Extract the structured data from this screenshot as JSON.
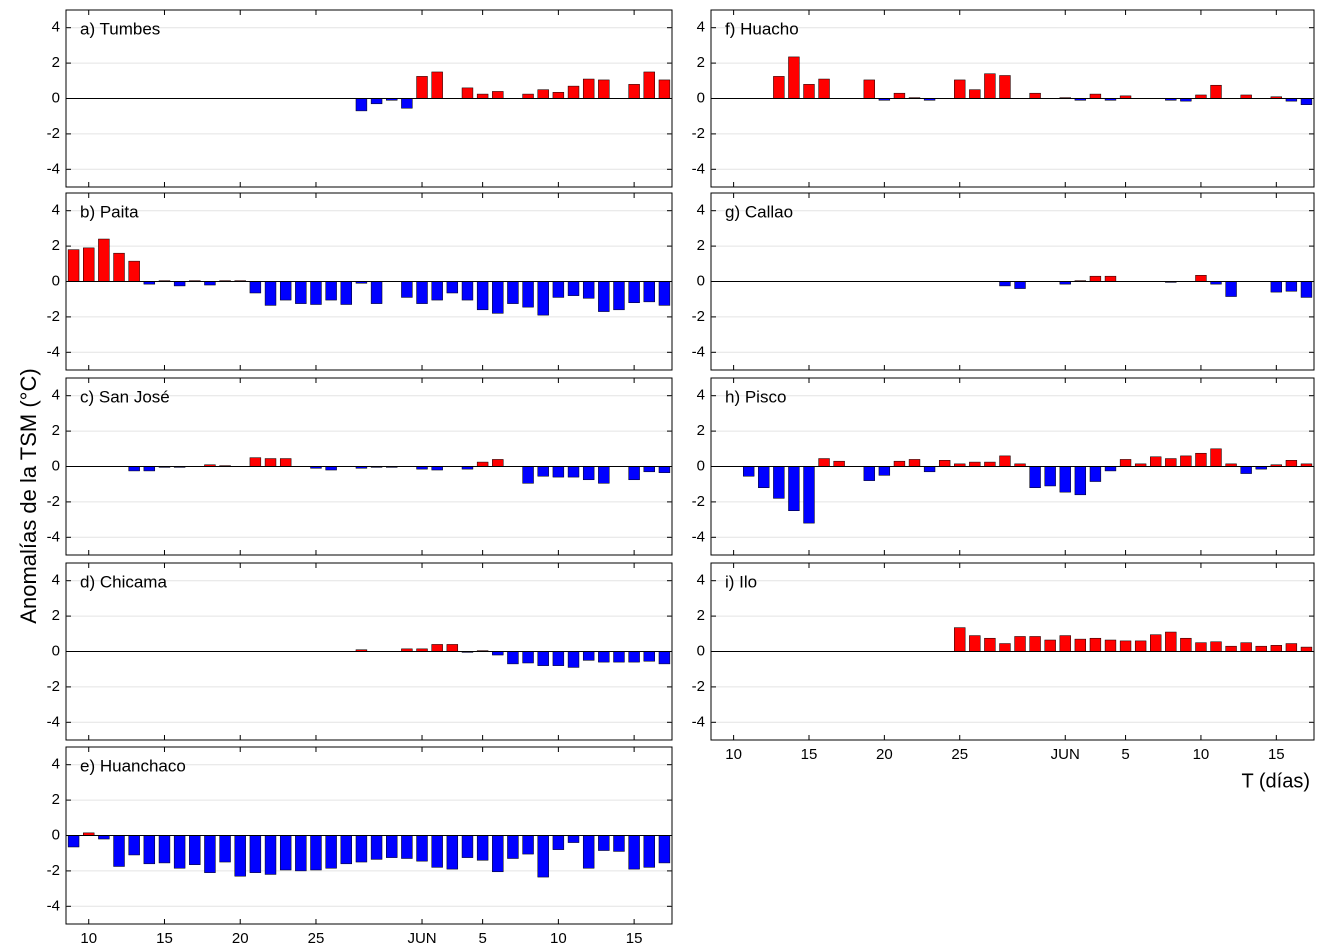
{
  "y_label": "Anomalías de la TSM (°C)",
  "x_label": "T (días)",
  "chart_data": [
    {
      "type": "bar",
      "title": "a) Tumbes",
      "ylim": [
        -5,
        5
      ],
      "yticks": [
        -4,
        -2,
        0,
        2,
        4
      ],
      "grid": true,
      "positive_color": "#ff0000",
      "negative_color": "#0000ff",
      "values": [
        null,
        null,
        null,
        null,
        null,
        null,
        null,
        null,
        null,
        null,
        null,
        null,
        null,
        null,
        null,
        null,
        null,
        null,
        null,
        -0.7,
        -0.3,
        -0.1,
        -0.55,
        1.25,
        1.5,
        null,
        0.6,
        0.25,
        0.4,
        null,
        0.25,
        0.5,
        0.35,
        0.7,
        1.1,
        1.05,
        null,
        0.8,
        1.5,
        1.05
      ]
    },
    {
      "type": "bar",
      "title": "b) Paita",
      "ylim": [
        -5,
        5
      ],
      "yticks": [
        -4,
        -2,
        0,
        2,
        4
      ],
      "grid": true,
      "positive_color": "#ff0000",
      "negative_color": "#0000ff",
      "values": [
        1.8,
        1.9,
        2.4,
        1.6,
        1.15,
        -0.15,
        0.05,
        -0.25,
        0.05,
        -0.2,
        0.05,
        0.05,
        -0.65,
        -1.35,
        -1.05,
        -1.25,
        -1.3,
        -1.05,
        -1.3,
        -0.1,
        -1.25,
        null,
        -0.9,
        -1.25,
        -1.05,
        -0.65,
        -1.05,
        -1.6,
        -1.8,
        -1.25,
        -1.45,
        -1.9,
        -0.9,
        -0.8,
        -0.95,
        -1.7,
        -1.6,
        -1.2,
        -1.15,
        -1.35
      ]
    },
    {
      "type": "bar",
      "title": "c) San José",
      "ylim": [
        -5,
        5
      ],
      "yticks": [
        -4,
        -2,
        0,
        2,
        4
      ],
      "grid": true,
      "positive_color": "#ff0000",
      "negative_color": "#0000ff",
      "values": [
        null,
        null,
        null,
        null,
        -0.25,
        -0.25,
        -0.05,
        -0.05,
        null,
        0.1,
        0.05,
        null,
        0.5,
        0.45,
        0.45,
        null,
        -0.1,
        -0.2,
        null,
        -0.1,
        -0.05,
        -0.05,
        null,
        -0.15,
        -0.2,
        null,
        -0.15,
        0.25,
        0.4,
        null,
        -0.95,
        -0.55,
        -0.6,
        -0.6,
        -0.75,
        -0.95,
        null,
        -0.75,
        -0.3,
        -0.35
      ]
    },
    {
      "type": "bar",
      "title": "d) Chicama",
      "ylim": [
        -5,
        5
      ],
      "yticks": [
        -4,
        -2,
        0,
        2,
        4
      ],
      "grid": true,
      "positive_color": "#ff0000",
      "negative_color": "#0000ff",
      "values": [
        null,
        null,
        null,
        null,
        null,
        null,
        null,
        null,
        null,
        null,
        null,
        null,
        null,
        null,
        null,
        null,
        null,
        null,
        null,
        0.1,
        null,
        null,
        0.15,
        0.15,
        0.4,
        0.4,
        -0.05,
        0.05,
        -0.2,
        -0.7,
        -0.65,
        -0.8,
        -0.8,
        -0.9,
        -0.5,
        -0.6,
        -0.6,
        -0.6,
        -0.55,
        -0.7
      ]
    },
    {
      "type": "bar",
      "title": "e) Huanchaco",
      "ylim": [
        -5,
        5
      ],
      "yticks": [
        -4,
        -2,
        0,
        2,
        4
      ],
      "grid": true,
      "positive_color": "#ff0000",
      "negative_color": "#0000ff",
      "categories": [
        null,
        "10",
        null,
        null,
        null,
        null,
        "15",
        null,
        null,
        null,
        null,
        "20",
        null,
        null,
        null,
        null,
        "25",
        null,
        null,
        null,
        null,
        null,
        null,
        "JUN",
        null,
        null,
        null,
        "5",
        null,
        null,
        null,
        null,
        "10",
        null,
        null,
        null,
        null,
        "15",
        null,
        null
      ],
      "values": [
        -0.65,
        0.15,
        -0.2,
        -1.75,
        -1.1,
        -1.6,
        -1.55,
        -1.85,
        -1.65,
        -2.1,
        -1.5,
        -2.3,
        -2.1,
        -2.2,
        -1.95,
        -2.0,
        -1.95,
        -1.85,
        -1.6,
        -1.5,
        -1.35,
        -1.25,
        -1.3,
        -1.45,
        -1.8,
        -1.9,
        -1.25,
        -1.4,
        -2.05,
        -1.3,
        -1.05,
        -2.35,
        -0.8,
        -0.4,
        -1.85,
        -0.85,
        -0.9,
        -1.9,
        -1.8,
        -1.55
      ]
    },
    {
      "type": "bar",
      "title": "f) Huacho",
      "ylim": [
        -5,
        5
      ],
      "yticks": [
        -4,
        -2,
        0,
        2,
        4
      ],
      "grid": true,
      "positive_color": "#ff0000",
      "negative_color": "#0000ff",
      "values": [
        null,
        null,
        null,
        null,
        1.25,
        2.35,
        0.8,
        1.1,
        null,
        null,
        1.05,
        -0.1,
        0.3,
        0.05,
        -0.1,
        null,
        1.05,
        0.5,
        1.4,
        1.3,
        null,
        0.3,
        null,
        0.05,
        -0.1,
        0.25,
        -0.1,
        0.15,
        null,
        null,
        -0.1,
        -0.15,
        0.2,
        0.75,
        null,
        0.2,
        null,
        0.1,
        -0.15,
        -0.35
      ]
    },
    {
      "type": "bar",
      "title": "g) Callao",
      "ylim": [
        -5,
        5
      ],
      "yticks": [
        -4,
        -2,
        0,
        2,
        4
      ],
      "grid": true,
      "positive_color": "#ff0000",
      "negative_color": "#0000ff",
      "values": [
        null,
        null,
        null,
        null,
        null,
        null,
        null,
        null,
        null,
        null,
        null,
        null,
        null,
        null,
        null,
        null,
        null,
        null,
        null,
        -0.25,
        -0.4,
        null,
        null,
        -0.15,
        0.05,
        0.3,
        0.3,
        null,
        null,
        null,
        -0.05,
        null,
        0.35,
        -0.15,
        -0.85,
        null,
        null,
        -0.6,
        -0.55,
        -0.9
      ]
    },
    {
      "type": "bar",
      "title": "h) Pisco",
      "ylim": [
        -5,
        5
      ],
      "yticks": [
        -4,
        -2,
        0,
        2,
        4
      ],
      "grid": true,
      "positive_color": "#ff0000",
      "negative_color": "#0000ff",
      "values": [
        null,
        null,
        -0.55,
        -1.2,
        -1.8,
        -2.5,
        -3.2,
        0.45,
        0.3,
        null,
        -0.8,
        -0.5,
        0.3,
        0.4,
        -0.3,
        0.35,
        0.15,
        0.25,
        0.25,
        0.6,
        0.15,
        -1.2,
        -1.1,
        -1.45,
        -1.6,
        -0.85,
        -0.25,
        0.4,
        0.15,
        0.55,
        0.45,
        0.6,
        0.75,
        1.0,
        0.15,
        -0.4,
        -0.15,
        0.1,
        0.35,
        0.15
      ]
    },
    {
      "type": "bar",
      "title": "i) Ilo",
      "ylim": [
        -5,
        5
      ],
      "yticks": [
        -4,
        -2,
        0,
        2,
        4
      ],
      "grid": true,
      "positive_color": "#ff0000",
      "negative_color": "#0000ff",
      "categories": [
        null,
        "10",
        null,
        null,
        null,
        null,
        "15",
        null,
        null,
        null,
        null,
        "20",
        null,
        null,
        null,
        null,
        "25",
        null,
        null,
        null,
        null,
        null,
        null,
        "JUN",
        null,
        null,
        null,
        "5",
        null,
        null,
        null,
        null,
        "10",
        null,
        null,
        null,
        null,
        "15",
        null,
        null
      ],
      "values": [
        null,
        null,
        null,
        null,
        null,
        null,
        null,
        null,
        null,
        null,
        null,
        null,
        null,
        null,
        null,
        null,
        1.35,
        0.9,
        0.75,
        0.45,
        0.85,
        0.85,
        0.65,
        0.9,
        0.7,
        0.75,
        0.65,
        0.6,
        0.6,
        0.95,
        1.1,
        0.75,
        0.5,
        0.55,
        0.3,
        0.5,
        0.3,
        0.35,
        0.45,
        0.25
      ]
    }
  ]
}
